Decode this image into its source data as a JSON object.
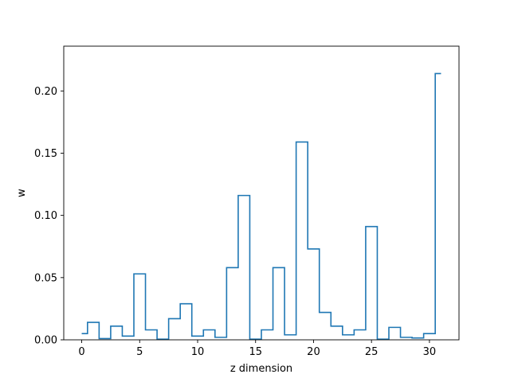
{
  "chart_data": {
    "type": "line",
    "drawstyle": "steps-mid",
    "title": "",
    "xlabel": "z dimension",
    "ylabel": "w",
    "xlim": [
      -1.55,
      32.55
    ],
    "ylim": [
      0,
      0.236
    ],
    "xticks": [
      0,
      5,
      10,
      15,
      20,
      25,
      30
    ],
    "yticks": [
      0.0,
      0.05,
      0.1,
      0.15,
      0.2
    ],
    "ytick_labels": [
      "0.00",
      "0.05",
      "0.10",
      "0.15",
      "0.20"
    ],
    "grid": false,
    "line_color": "#1f77b4",
    "series": [
      {
        "x": [
          0,
          1,
          2,
          3,
          4,
          5,
          6,
          7,
          8,
          9,
          10,
          11,
          12,
          13,
          14,
          15,
          16,
          17,
          18,
          19,
          20,
          21,
          22,
          23,
          24,
          25,
          26,
          27,
          28,
          29,
          30,
          31
        ],
        "values": [
          0.005,
          0.014,
          0.001,
          0.011,
          0.003,
          0.053,
          0.008,
          0.0005,
          0.017,
          0.029,
          0.003,
          0.008,
          0.002,
          0.058,
          0.116,
          0.0005,
          0.008,
          0.058,
          0.004,
          0.159,
          0.073,
          0.022,
          0.011,
          0.004,
          0.008,
          0.091,
          0.0005,
          0.01,
          0.002,
          0.0015,
          0.005,
          0.214
        ]
      }
    ]
  }
}
